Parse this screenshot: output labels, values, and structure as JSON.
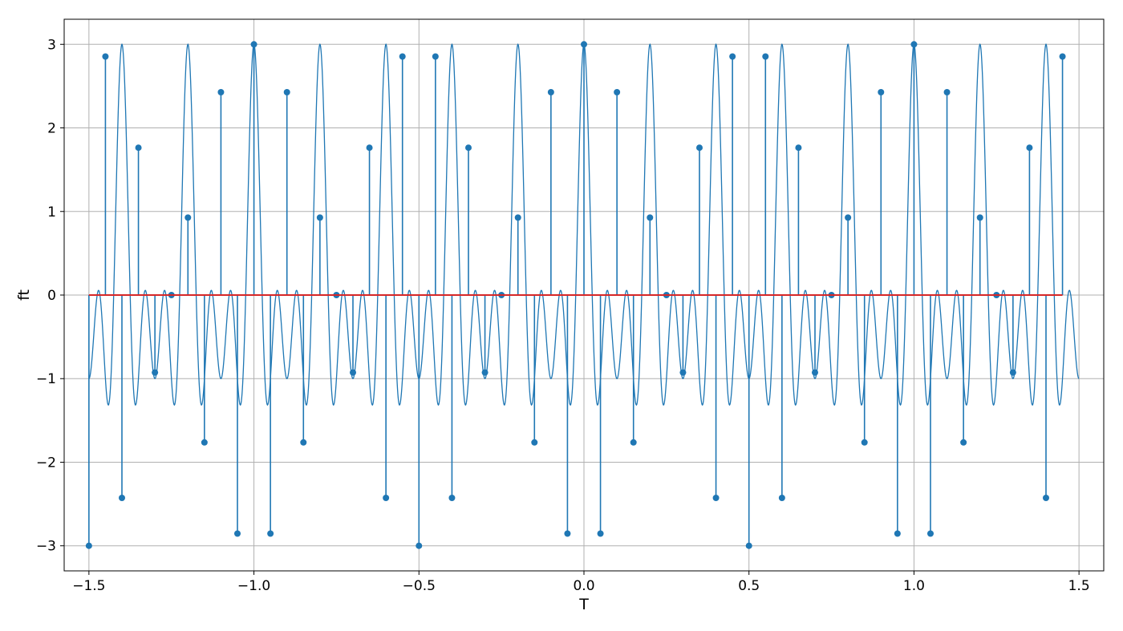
{
  "chart_data": {
    "type": "stem",
    "xlabel": "T",
    "ylabel": "ft",
    "xlim": [
      -1.575,
      1.575
    ],
    "ylim": [
      -3.3,
      3.3
    ],
    "grid": true,
    "xticks": [
      -1.5,
      -1.0,
      -0.5,
      0.0,
      0.5,
      1.0,
      1.5
    ],
    "xtick_labels": [
      "−1.5",
      "−1.0",
      "−0.5",
      "0.0",
      "0.5",
      "1.0",
      "1.5"
    ],
    "yticks": [
      -3,
      -2,
      -1,
      0,
      1,
      2,
      3
    ],
    "ytick_labels": [
      "−3",
      "−2",
      "−1",
      "0",
      "1",
      "2",
      "3"
    ],
    "continuous_signal": {
      "x_range": [
        -1.5,
        1.5
      ],
      "expression": "cos(30*pi*t) + cos(20*pi*t) + cos(10*pi*t)",
      "color": "#1f77b4"
    },
    "samples": {
      "x_start": -1.5,
      "x_step": 0.05,
      "count": 60,
      "values": [
        -3.0,
        2.854,
        -2.427,
        1.763,
        -0.927,
        0.0,
        0.927,
        -1.763,
        2.427,
        -2.854,
        3.0,
        -2.854,
        2.427,
        -1.763,
        0.927,
        0.0,
        -0.927,
        1.763,
        -2.427,
        2.854,
        -3.0,
        2.854,
        -2.427,
        1.763,
        -0.927,
        0.0,
        0.927,
        -1.763,
        2.427,
        -2.854,
        3.0,
        -2.854,
        2.427,
        -1.763,
        0.927,
        0.0,
        -0.927,
        1.763,
        -2.427,
        2.854,
        -3.0,
        2.854,
        -2.427,
        1.763,
        -0.927,
        0.0,
        0.927,
        -1.763,
        2.427,
        -2.854,
        3.0,
        -2.854,
        2.427,
        -1.763,
        0.927,
        0.0,
        -0.927,
        1.763,
        -2.427,
        2.854
      ],
      "marker_color": "#1f77b4",
      "baseline_color": "#d62728"
    }
  }
}
